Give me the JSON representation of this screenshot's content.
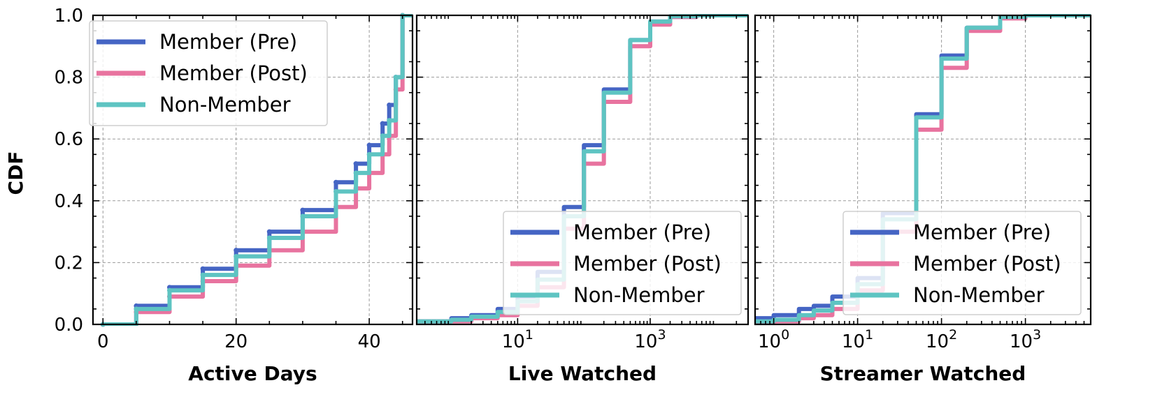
{
  "figure": {
    "ylabel": "CDF"
  },
  "chart_data": [
    {
      "type": "line",
      "style": "step",
      "xlabel": "Active Days",
      "ylabel": "CDF",
      "xscale": "linear",
      "xlim": [
        -1.5,
        46.5
      ],
      "ylim": [
        0,
        1
      ],
      "xticks": [
        0,
        20,
        40
      ],
      "xtick_labels": [
        "0",
        "20",
        "40"
      ],
      "yticks": [
        0,
        0.2,
        0.4,
        0.6,
        0.8,
        1.0
      ],
      "ytick_labels": [
        "0.0",
        "0.2",
        "0.4",
        "0.6",
        "0.8",
        "1.0"
      ],
      "grid": true,
      "legend": {
        "position": "upper-left",
        "entries": [
          "Member (Pre)",
          "Member (Post)",
          "Non-Member"
        ]
      },
      "series": [
        {
          "name": "Member (Pre)",
          "color": "#4565c4",
          "x": [
            0,
            5,
            10,
            15,
            20,
            25,
            30,
            35,
            38,
            40,
            42,
            43,
            44,
            45
          ],
          "y": [
            0.0,
            0.06,
            0.12,
            0.18,
            0.24,
            0.3,
            0.37,
            0.46,
            0.52,
            0.58,
            0.65,
            0.71,
            0.8,
            1.0
          ]
        },
        {
          "name": "Member (Post)",
          "color": "#e8739f",
          "x": [
            0,
            5,
            10,
            15,
            20,
            25,
            30,
            35,
            38,
            40,
            42,
            43,
            44,
            45
          ],
          "y": [
            0.0,
            0.04,
            0.09,
            0.14,
            0.19,
            0.24,
            0.3,
            0.38,
            0.44,
            0.49,
            0.55,
            0.61,
            0.76,
            1.0
          ]
        },
        {
          "name": "Non-Member",
          "color": "#5ec4c2",
          "x": [
            0,
            5,
            10,
            15,
            20,
            25,
            30,
            35,
            38,
            40,
            42,
            43,
            44,
            45
          ],
          "y": [
            0.0,
            0.05,
            0.11,
            0.16,
            0.22,
            0.28,
            0.35,
            0.43,
            0.49,
            0.55,
            0.61,
            0.66,
            0.8,
            1.0
          ]
        }
      ]
    },
    {
      "type": "line",
      "style": "step",
      "xlabel": "Live Watched",
      "xscale": "log",
      "xlim": [
        0.3,
        30000
      ],
      "ylim": [
        0,
        1
      ],
      "xticks": [
        10,
        1000
      ],
      "xtick_labels": [
        {
          "base": "10",
          "exp": "1"
        },
        {
          "base": "10",
          "exp": "3"
        }
      ],
      "grid": true,
      "legend": {
        "position": "lower-right",
        "entries": [
          "Member (Pre)",
          "Member (Post)",
          "Non-Member"
        ]
      },
      "series": [
        {
          "name": "Member (Pre)",
          "color": "#4565c4",
          "x": [
            0.3,
            1,
            2,
            5,
            10,
            20,
            50,
            100,
            200,
            500,
            1000,
            2000,
            5000,
            20000
          ],
          "y": [
            0.01,
            0.02,
            0.03,
            0.05,
            0.09,
            0.17,
            0.38,
            0.58,
            0.76,
            0.92,
            0.98,
            0.995,
            1.0,
            1.0
          ]
        },
        {
          "name": "Member (Post)",
          "color": "#e8739f",
          "x": [
            0.3,
            1,
            2,
            5,
            10,
            20,
            50,
            100,
            200,
            500,
            1000,
            2000,
            5000,
            20000
          ],
          "y": [
            0.01,
            0.01,
            0.02,
            0.03,
            0.06,
            0.12,
            0.31,
            0.52,
            0.72,
            0.9,
            0.97,
            0.995,
            1.0,
            1.0
          ]
        },
        {
          "name": "Non-Member",
          "color": "#5ec4c2",
          "x": [
            0.3,
            1,
            2,
            5,
            10,
            20,
            50,
            100,
            200,
            500,
            1000,
            2000,
            5000,
            20000
          ],
          "y": [
            0.01,
            0.015,
            0.025,
            0.04,
            0.075,
            0.145,
            0.35,
            0.56,
            0.75,
            0.92,
            0.98,
            0.997,
            1.0,
            1.0
          ]
        }
      ]
    },
    {
      "type": "line",
      "style": "step",
      "xlabel": "Streamer Watched",
      "xscale": "log",
      "xlim": [
        0.6,
        6000
      ],
      "ylim": [
        0,
        1
      ],
      "xticks": [
        1,
        10,
        100,
        1000
      ],
      "xtick_labels": [
        {
          "base": "10",
          "exp": "0"
        },
        {
          "base": "10",
          "exp": "1"
        },
        {
          "base": "10",
          "exp": "2"
        },
        {
          "base": "10",
          "exp": "3"
        }
      ],
      "grid": true,
      "legend": {
        "position": "lower-right",
        "entries": [
          "Member (Pre)",
          "Member (Post)",
          "Non-Member"
        ]
      },
      "series": [
        {
          "name": "Member (Pre)",
          "color": "#4565c4",
          "x": [
            0.6,
            1,
            2,
            3,
            5,
            10,
            20,
            50,
            100,
            200,
            500,
            1000,
            6000
          ],
          "y": [
            0.02,
            0.03,
            0.05,
            0.06,
            0.09,
            0.15,
            0.36,
            0.68,
            0.87,
            0.96,
            0.995,
            1.0,
            1.0
          ]
        },
        {
          "name": "Member (Post)",
          "color": "#e8739f",
          "x": [
            0.6,
            1,
            2,
            3,
            5,
            10,
            20,
            50,
            100,
            200,
            500,
            1000,
            6000
          ],
          "y": [
            0.005,
            0.01,
            0.02,
            0.03,
            0.05,
            0.11,
            0.3,
            0.63,
            0.83,
            0.95,
            0.99,
            1.0,
            1.0
          ]
        },
        {
          "name": "Non-Member",
          "color": "#5ec4c2",
          "x": [
            0.6,
            1,
            2,
            3,
            5,
            10,
            20,
            50,
            100,
            200,
            500,
            1000,
            6000
          ],
          "y": [
            0.01,
            0.015,
            0.03,
            0.045,
            0.07,
            0.13,
            0.34,
            0.67,
            0.86,
            0.96,
            0.995,
            1.0,
            1.0
          ]
        }
      ]
    }
  ]
}
